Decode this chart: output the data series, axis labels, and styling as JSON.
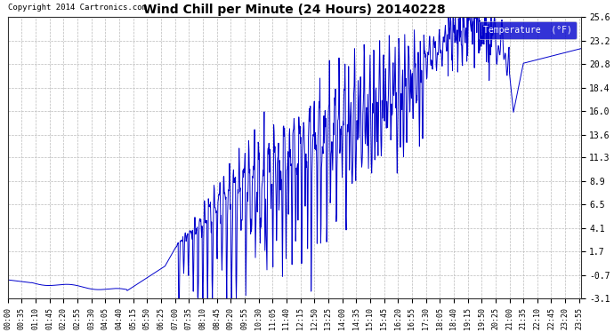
{
  "title": "Wind Chill per Minute (24 Hours) 20140228",
  "copyright": "Copyright 2014 Cartronics.com",
  "legend_label": "Temperature  (°F)",
  "background_color": "#ffffff",
  "plot_bg_color": "#ffffff",
  "line_color": "#0000cc",
  "line_width": 0.7,
  "yticks": [
    -3.1,
    -0.7,
    1.7,
    4.1,
    6.5,
    8.9,
    11.3,
    13.6,
    16.0,
    18.4,
    20.8,
    23.2,
    25.6
  ],
  "ylim": [
    -3.1,
    25.6
  ],
  "xtick_labels": [
    "00:00",
    "00:35",
    "01:10",
    "01:45",
    "02:20",
    "02:55",
    "03:30",
    "04:05",
    "04:40",
    "05:15",
    "05:50",
    "06:25",
    "07:00",
    "07:35",
    "08:10",
    "08:45",
    "09:20",
    "09:55",
    "10:30",
    "11:05",
    "11:40",
    "12:15",
    "12:50",
    "13:25",
    "14:00",
    "14:35",
    "15:10",
    "15:45",
    "16:20",
    "16:55",
    "17:30",
    "18:05",
    "18:40",
    "19:15",
    "19:50",
    "20:25",
    "21:00",
    "21:35",
    "22:10",
    "22:45",
    "23:20",
    "23:55"
  ],
  "grid_color": "#bbbbbb",
  "grid_linestyle": "--",
  "legend_bg": "#0000cc",
  "legend_text_color": "#ffffff"
}
